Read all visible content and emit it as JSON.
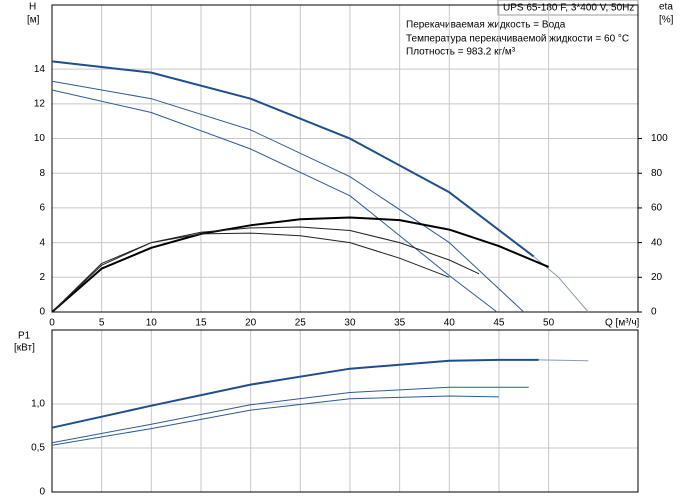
{
  "chart_data": [
    {
      "type": "line",
      "title": "UPS 65-180 F, 3*400 V, 50Hz",
      "annotations": [
        "Перекачиваемая жидкость = Вода",
        "Температура перекачиваемой жидкости = 60 °C",
        "Плотность = 983.2 кг/м³"
      ],
      "ylabel": "H",
      "yunit": "[м]",
      "y2label": "eta",
      "y2unit": "[%]",
      "xlabel": "Q [м³/ч]",
      "xlim": [
        0,
        59
      ],
      "xticks": [
        0,
        5,
        10,
        15,
        20,
        25,
        30,
        35,
        40,
        45,
        50
      ],
      "ylim": [
        0,
        17.7
      ],
      "yticks": [
        0,
        2,
        4,
        6,
        8,
        10,
        12,
        14
      ],
      "y2lim": [
        0,
        177
      ],
      "y2ticks": [
        0,
        20,
        40,
        60,
        80,
        100
      ],
      "grid": true,
      "series": [
        {
          "color": "#1f4e8c",
          "line_width": 2,
          "x": [
            0,
            10,
            20,
            30,
            40,
            48.5
          ],
          "values": [
            14.45,
            13.8,
            12.3,
            10.0,
            6.9,
            3.2
          ]
        },
        {
          "color": "#8a9bb5",
          "line_width": 1,
          "x": [
            48.5,
            51,
            54
          ],
          "values": [
            3.2,
            2.0,
            0
          ]
        },
        {
          "color": "#2e5a94",
          "line_width": 1,
          "x": [
            0,
            10,
            20,
            30,
            40,
            47.5
          ],
          "values": [
            13.3,
            12.3,
            10.5,
            7.8,
            4.0,
            0
          ]
        },
        {
          "color": "#2e5a94",
          "line_width": 1,
          "x": [
            0,
            10,
            20,
            30,
            40,
            44.8
          ],
          "values": [
            12.8,
            11.5,
            9.4,
            6.7,
            2.1,
            0
          ]
        },
        {
          "color": "#000000",
          "line_width": 2,
          "axis": "y2",
          "x": [
            0,
            5,
            10,
            15,
            20,
            25,
            30,
            35,
            40,
            45,
            50
          ],
          "values": [
            0,
            25,
            37,
            45,
            50,
            53.5,
            54.5,
            53,
            47.5,
            38,
            26
          ]
        },
        {
          "color": "#222222",
          "line_width": 1,
          "axis": "y2",
          "x": [
            0,
            5,
            10,
            15,
            20,
            25,
            30,
            35,
            40,
            43
          ],
          "values": [
            0,
            27,
            40,
            46,
            48.5,
            49,
            47,
            40,
            30,
            22
          ]
        },
        {
          "color": "#222222",
          "line_width": 1,
          "axis": "y2",
          "x": [
            0,
            5,
            10,
            15,
            20,
            25,
            30,
            35,
            40
          ],
          "values": [
            0,
            28,
            40,
            45,
            45.5,
            44,
            40,
            31,
            20
          ]
        }
      ]
    },
    {
      "type": "line",
      "ylabel": "P1",
      "yunit": "[кВт]",
      "xlim": [
        0,
        59
      ],
      "ylim": [
        0,
        1.84
      ],
      "yticks": [
        0,
        {
          "value": 0.5,
          "label": "0,5"
        },
        {
          "value": 1.0,
          "label": "1,0"
        }
      ],
      "grid": true,
      "series": [
        {
          "color": "#1f4e8c",
          "line_width": 2,
          "x": [
            0,
            10,
            20,
            30,
            40,
            45,
            49
          ],
          "values": [
            0.73,
            0.98,
            1.22,
            1.4,
            1.49,
            1.5,
            1.5
          ]
        },
        {
          "color": "#8a9bb5",
          "line_width": 1,
          "x": [
            49,
            54
          ],
          "values": [
            1.5,
            1.49
          ]
        },
        {
          "color": "#2e5a94",
          "line_width": 1,
          "x": [
            0,
            10,
            20,
            30,
            40,
            48
          ],
          "values": [
            0.56,
            0.77,
            0.99,
            1.13,
            1.19,
            1.19
          ]
        },
        {
          "color": "#2e5a94",
          "line_width": 1,
          "x": [
            0,
            10,
            20,
            30,
            40,
            45
          ],
          "values": [
            0.53,
            0.72,
            0.93,
            1.06,
            1.09,
            1.08
          ]
        }
      ]
    }
  ]
}
